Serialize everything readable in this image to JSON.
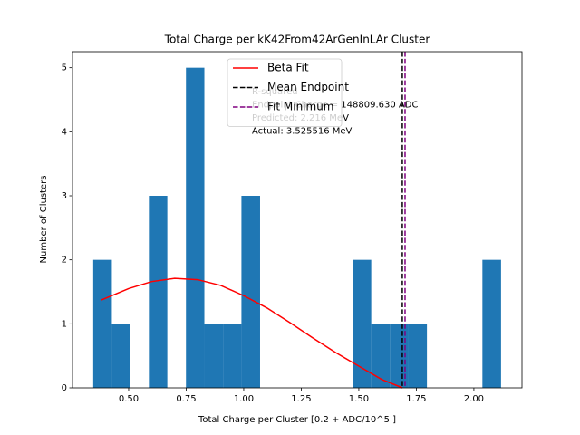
{
  "chart_data": {
    "type": "histogram",
    "title": "Total Charge per kK42From42ArGenInLAr Cluster",
    "xlabel": "Total Charge per Cluster [0.2 + ADC/10^5 ]",
    "ylabel": "Number of Clusters",
    "bins": [
      0.346,
      0.427,
      0.507,
      0.588,
      0.668,
      0.749,
      0.829,
      0.91,
      0.99,
      1.071,
      1.151,
      1.232,
      1.313,
      1.393,
      1.474,
      1.554,
      1.635,
      1.715,
      1.796,
      1.876,
      1.957,
      2.037,
      2.118
    ],
    "counts": [
      2,
      1,
      0,
      3,
      0,
      5,
      1,
      1,
      3,
      0,
      0,
      0,
      0,
      0,
      2,
      1,
      1,
      1,
      0,
      0,
      0,
      2
    ],
    "color": "#1f77b4",
    "fit": {
      "name": "Beta Fit",
      "color": "#ff0000",
      "x": [
        0.38,
        0.5,
        0.6,
        0.7,
        0.8,
        0.9,
        1.0,
        1.1,
        1.2,
        1.3,
        1.4,
        1.5,
        1.6,
        1.69
      ],
      "values": [
        1.37,
        1.55,
        1.66,
        1.71,
        1.69,
        1.6,
        1.44,
        1.25,
        1.02,
        0.78,
        0.55,
        0.34,
        0.13,
        0
      ]
    },
    "vlines": [
      {
        "name": "Mean Endpoint",
        "color": "#000000",
        "x": 1.689
      },
      {
        "name": "Fit Minimum",
        "color": "#800080",
        "x": 1.701
      }
    ],
    "annotation": [
      "R-squared",
      "Endpoint Charge = 148809.630 ADC",
      "Predicted: 2.216 MeV",
      "Actual: 3.525516 MeV"
    ],
    "xlim": [
      0.256,
      2.209
    ],
    "ylim": [
      0,
      5.25
    ],
    "xticks": [
      {
        "value": 0.5,
        "label": "0.50"
      },
      {
        "value": 0.75,
        "label": "0.75"
      },
      {
        "value": 1,
        "label": "1.00"
      },
      {
        "value": 1.25,
        "label": "1.25"
      },
      {
        "value": 1.5,
        "label": "1.50"
      },
      {
        "value": 1.75,
        "label": "1.75"
      },
      {
        "value": 2,
        "label": "2.00"
      }
    ],
    "yticks": [
      0,
      1,
      2,
      3,
      4,
      5
    ],
    "legend": "upper center"
  }
}
